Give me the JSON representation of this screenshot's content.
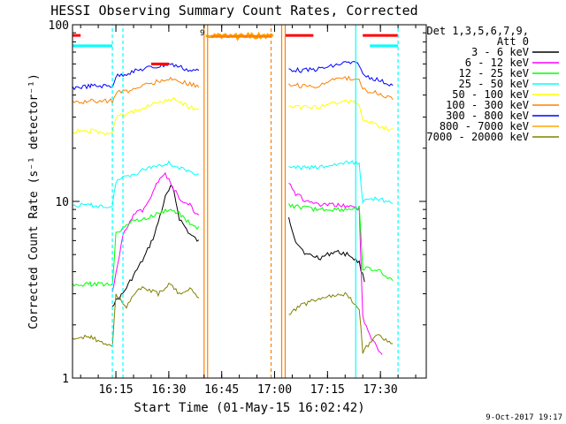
{
  "chart_data": {
    "type": "line",
    "title": "HESSI Observing Summary Count Rates, Corrected",
    "xlabel": "Start Time (01-May-15 16:02:42)",
    "ylabel": "Corrected Count Rate (s⁻¹ detector⁻¹)",
    "y_scale": "log",
    "ylim": [
      1,
      100
    ],
    "y_ticks": [
      {
        "value": 1,
        "label": "1"
      },
      {
        "value": 10,
        "label": "10"
      },
      {
        "value": 100,
        "label": "100"
      }
    ],
    "xlim": [
      "16:02:42",
      "17:43:00"
    ],
    "x_ticks": [
      "16:15",
      "16:30",
      "16:45",
      "17:00",
      "17:15",
      "17:30"
    ],
    "legend": {
      "placement": "right",
      "header": [
        "Det 1,3,5,6,7,9,",
        "Att 0"
      ]
    },
    "series": [
      {
        "name": "3 - 6 keV",
        "color": "#000000",
        "points": [
          [
            "16:14",
            2.6
          ],
          [
            "16:17",
            3.0
          ],
          [
            "16:20",
            3.8
          ],
          [
            "16:23",
            4.8
          ],
          [
            "16:26",
            6.5
          ],
          [
            "16:29",
            10.5
          ],
          [
            "16:31",
            12.5
          ],
          [
            "16:33",
            8.0
          ],
          [
            "16:36",
            6.5
          ],
          [
            "16:39",
            5.8
          ],
          [
            "17:04",
            8.0
          ],
          [
            "17:06",
            6.0
          ],
          [
            "17:09",
            5.0
          ],
          [
            "17:13",
            4.8
          ],
          [
            "17:17",
            5.2
          ],
          [
            "17:21",
            5.0
          ],
          [
            "17:24",
            4.5
          ],
          [
            "17:25",
            3.8
          ],
          [
            "17:26",
            3.4
          ]
        ]
      },
      {
        "name": "6 - 12 keV",
        "color": "#ff00ff",
        "points": [
          [
            "16:14",
            3.0
          ],
          [
            "16:17",
            6.5
          ],
          [
            "16:20",
            8.5
          ],
          [
            "16:23",
            9.0
          ],
          [
            "16:26",
            12.0
          ],
          [
            "16:29",
            14.5
          ],
          [
            "16:31",
            12.0
          ],
          [
            "16:33",
            10.5
          ],
          [
            "16:36",
            9.5
          ],
          [
            "16:39",
            8.0
          ],
          [
            "17:04",
            13.0
          ],
          [
            "17:06",
            11.0
          ],
          [
            "17:09",
            10.0
          ],
          [
            "17:13",
            9.5
          ],
          [
            "17:17",
            9.5
          ],
          [
            "17:21",
            9.5
          ],
          [
            "17:24",
            9.0
          ],
          [
            "17:25",
            2.2
          ],
          [
            "17:28",
            1.6
          ],
          [
            "17:31",
            1.3
          ]
        ]
      },
      {
        "name": "12 - 25 keV",
        "color": "#00ff00",
        "points": [
          [
            "16:02:42",
            3.4
          ],
          [
            "16:08",
            3.4
          ],
          [
            "16:14",
            3.4
          ],
          [
            "16:15",
            6.5
          ],
          [
            "16:18",
            7.5
          ],
          [
            "16:21",
            7.8
          ],
          [
            "16:24",
            8.0
          ],
          [
            "16:27",
            8.5
          ],
          [
            "16:30",
            9.0
          ],
          [
            "16:33",
            8.5
          ],
          [
            "16:36",
            7.5
          ],
          [
            "16:39",
            7.0
          ],
          [
            "17:04",
            9.5
          ],
          [
            "17:08",
            9.2
          ],
          [
            "17:12",
            9.0
          ],
          [
            "17:16",
            9.0
          ],
          [
            "17:20",
            9.0
          ],
          [
            "17:24",
            9.2
          ],
          [
            "17:25",
            4.2
          ],
          [
            "17:30",
            4.0
          ],
          [
            "17:34",
            3.5
          ]
        ]
      },
      {
        "name": "25 - 50 keV",
        "color": "#00ffff",
        "points": [
          [
            "16:02:42",
            9.5
          ],
          [
            "16:08",
            9.5
          ],
          [
            "16:14",
            9.3
          ],
          [
            "16:15",
            13.0
          ],
          [
            "16:18",
            14.0
          ],
          [
            "16:21",
            14.5
          ],
          [
            "16:24",
            15.5
          ],
          [
            "16:27",
            16.0
          ],
          [
            "16:30",
            16.5
          ],
          [
            "16:33",
            15.5
          ],
          [
            "16:36",
            14.5
          ],
          [
            "16:39",
            14.5
          ],
          [
            "17:04",
            15.5
          ],
          [
            "17:08",
            15.5
          ],
          [
            "17:12",
            15.5
          ],
          [
            "17:16",
            16.0
          ],
          [
            "17:20",
            16.5
          ],
          [
            "17:24",
            16.5
          ],
          [
            "17:25",
            10.0
          ],
          [
            "17:29",
            10.5
          ],
          [
            "17:34",
            9.5
          ]
        ]
      },
      {
        "name": "50 - 100 keV",
        "color": "#ffff00",
        "points": [
          [
            "16:02:42",
            25
          ],
          [
            "16:08",
            25
          ],
          [
            "16:14",
            24
          ],
          [
            "16:15",
            30
          ],
          [
            "16:18",
            31
          ],
          [
            "16:21",
            33
          ],
          [
            "16:24",
            35
          ],
          [
            "16:27",
            36
          ],
          [
            "16:30",
            38
          ],
          [
            "16:33",
            37
          ],
          [
            "16:36",
            34
          ],
          [
            "16:39",
            33
          ],
          [
            "17:04",
            34
          ],
          [
            "17:08",
            34
          ],
          [
            "17:12",
            34
          ],
          [
            "17:16",
            36
          ],
          [
            "17:20",
            37
          ],
          [
            "17:24",
            36
          ],
          [
            "17:25",
            29
          ],
          [
            "17:29",
            27
          ],
          [
            "17:34",
            25
          ]
        ]
      },
      {
        "name": "100 - 300 keV",
        "color": "#ff8000",
        "points": [
          [
            "16:02:42",
            36
          ],
          [
            "16:08",
            37
          ],
          [
            "16:14",
            37
          ],
          [
            "16:15",
            41
          ],
          [
            "16:18",
            42
          ],
          [
            "16:21",
            44
          ],
          [
            "16:24",
            46
          ],
          [
            "16:27",
            48
          ],
          [
            "16:30",
            50
          ],
          [
            "16:33",
            48
          ],
          [
            "16:36",
            46
          ],
          [
            "16:39",
            45
          ],
          [
            "17:04",
            46
          ],
          [
            "17:08",
            45
          ],
          [
            "17:12",
            45
          ],
          [
            "17:16",
            48
          ],
          [
            "17:20",
            50
          ],
          [
            "17:24",
            49
          ],
          [
            "17:25",
            43
          ],
          [
            "17:29",
            41
          ],
          [
            "17:34",
            38
          ]
        ]
      },
      {
        "name": "300 - 800 keV",
        "color": "#0000ff",
        "points": [
          [
            "16:02:42",
            44
          ],
          [
            "16:08",
            45
          ],
          [
            "16:14",
            45
          ],
          [
            "16:15",
            51
          ],
          [
            "16:18",
            53
          ],
          [
            "16:21",
            55
          ],
          [
            "16:24",
            57
          ],
          [
            "16:27",
            58
          ],
          [
            "16:30",
            60
          ],
          [
            "16:33",
            58
          ],
          [
            "16:36",
            55
          ],
          [
            "16:39",
            55
          ],
          [
            "17:04",
            56
          ],
          [
            "17:08",
            55
          ],
          [
            "17:12",
            56
          ],
          [
            "17:16",
            58
          ],
          [
            "17:20",
            61
          ],
          [
            "17:24",
            60
          ],
          [
            "17:25",
            52
          ],
          [
            "17:29",
            49
          ],
          [
            "17:34",
            45
          ]
        ]
      },
      {
        "name": "800 - 7000 keV",
        "color": "#ffa500",
        "points": [
          [
            "16:40:30",
            86
          ],
          [
            "16:43",
            86
          ],
          [
            "16:46",
            86
          ],
          [
            "16:50",
            86
          ],
          [
            "16:55",
            86
          ],
          [
            "17:00",
            86
          ]
        ]
      },
      {
        "name": "7000 - 20000 keV",
        "color": "#808000",
        "points": [
          [
            "16:02:42",
            1.7
          ],
          [
            "16:08",
            1.7
          ],
          [
            "16:14",
            1.5
          ],
          [
            "16:15",
            3.0
          ],
          [
            "16:18",
            2.5
          ],
          [
            "16:21",
            3.2
          ],
          [
            "16:24",
            3.2
          ],
          [
            "16:27",
            3.0
          ],
          [
            "16:30",
            3.4
          ],
          [
            "16:33",
            3.0
          ],
          [
            "16:36",
            3.2
          ],
          [
            "16:39",
            2.8
          ],
          [
            "17:04",
            2.3
          ],
          [
            "17:08",
            2.6
          ],
          [
            "17:12",
            2.8
          ],
          [
            "17:16",
            2.9
          ],
          [
            "17:20",
            3.0
          ],
          [
            "17:24",
            2.5
          ],
          [
            "17:25",
            1.4
          ],
          [
            "17:29",
            1.8
          ],
          [
            "17:34",
            1.5
          ]
        ]
      }
    ],
    "flag_bars": [
      {
        "color": "#00ffff",
        "y": 76,
        "x": [
          [
            "16:02:42",
            "16:14"
          ],
          [
            "17:27",
            "17:35"
          ]
        ]
      },
      {
        "color": "#ff0000",
        "y": 87,
        "x": [
          [
            "16:02:42",
            "16:05"
          ],
          [
            "17:03",
            "17:11"
          ],
          [
            "17:25",
            "17:35"
          ]
        ]
      },
      {
        "color": "#ff0000",
        "y": 60,
        "x": [
          [
            "16:25",
            "16:30"
          ]
        ]
      },
      {
        "color": "#ff8000",
        "y": 86,
        "x": [
          [
            "16:42",
            "16:59"
          ]
        ]
      }
    ],
    "vertical_lines": [
      {
        "x": "16:40",
        "color": "#ff8000",
        "style": "solid",
        "y_top": 100
      },
      {
        "x": "16:41",
        "color": "#ff8000",
        "style": "solid",
        "y_top": 100
      },
      {
        "x": "17:02",
        "color": "#ff8000",
        "style": "solid",
        "y_top": 100
      },
      {
        "x": "16:14",
        "color": "#00ffff",
        "style": "dashed",
        "y_top": 100
      },
      {
        "x": "17:23",
        "color": "#00ffff",
        "style": "solid",
        "y_top": 100
      },
      {
        "x": "16:17",
        "color": "#00ffff",
        "style": "dashed",
        "y_top": 100
      },
      {
        "x": "17:35",
        "color": "#00ffff",
        "style": "dashed",
        "y_top": 100
      },
      {
        "x": "16:59",
        "color": "#ff8000",
        "style": "dashed",
        "y_top": 100
      },
      {
        "x": "17:03",
        "color": "#ff8000",
        "style": "solid",
        "y_top": 100
      }
    ],
    "annotations": {
      "small_marker": "9",
      "timestamp": "9-Oct-2017 19:17"
    }
  }
}
